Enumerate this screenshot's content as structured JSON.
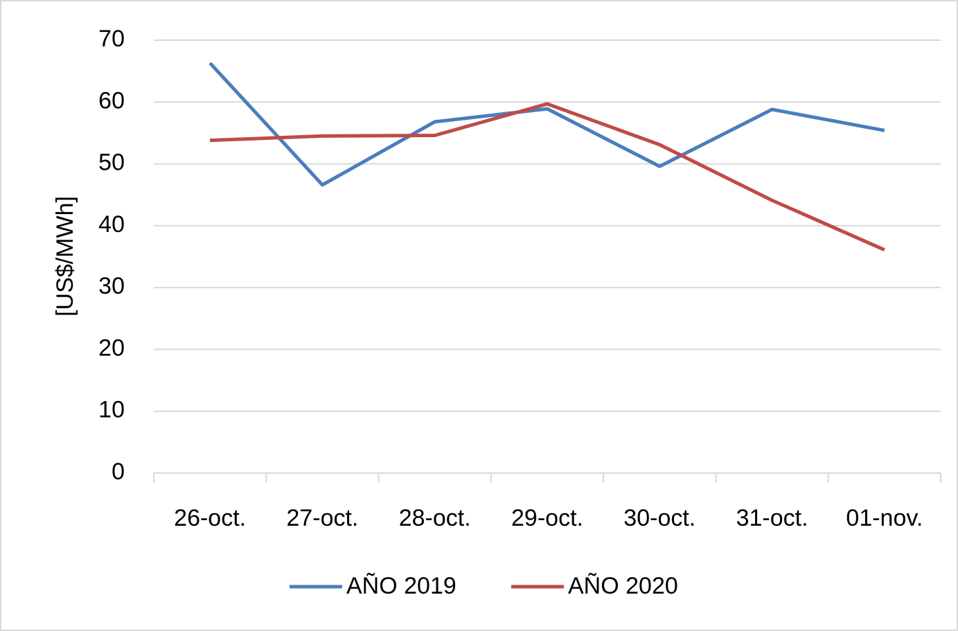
{
  "chart_data": {
    "type": "line",
    "y_label": "[US$/MWh]",
    "categories": [
      "26-oct.",
      "27-oct.",
      "28-oct.",
      "29-oct.",
      "30-oct.",
      "31-oct.",
      "01-nov."
    ],
    "series": [
      {
        "name": "AÑO 2019",
        "color": "#4a7ebb",
        "values": [
          66.3,
          46.6,
          56.8,
          58.9,
          49.6,
          58.8,
          55.4
        ]
      },
      {
        "name": "AÑO 2020",
        "color": "#be4b48",
        "values": [
          53.8,
          54.5,
          54.6,
          59.7,
          53.1,
          44.1,
          36.1
        ]
      }
    ],
    "ylim": [
      0,
      70
    ],
    "yticks": [
      0,
      10,
      20,
      30,
      40,
      50,
      60,
      70
    ],
    "grid": true,
    "legend": "bottom"
  }
}
